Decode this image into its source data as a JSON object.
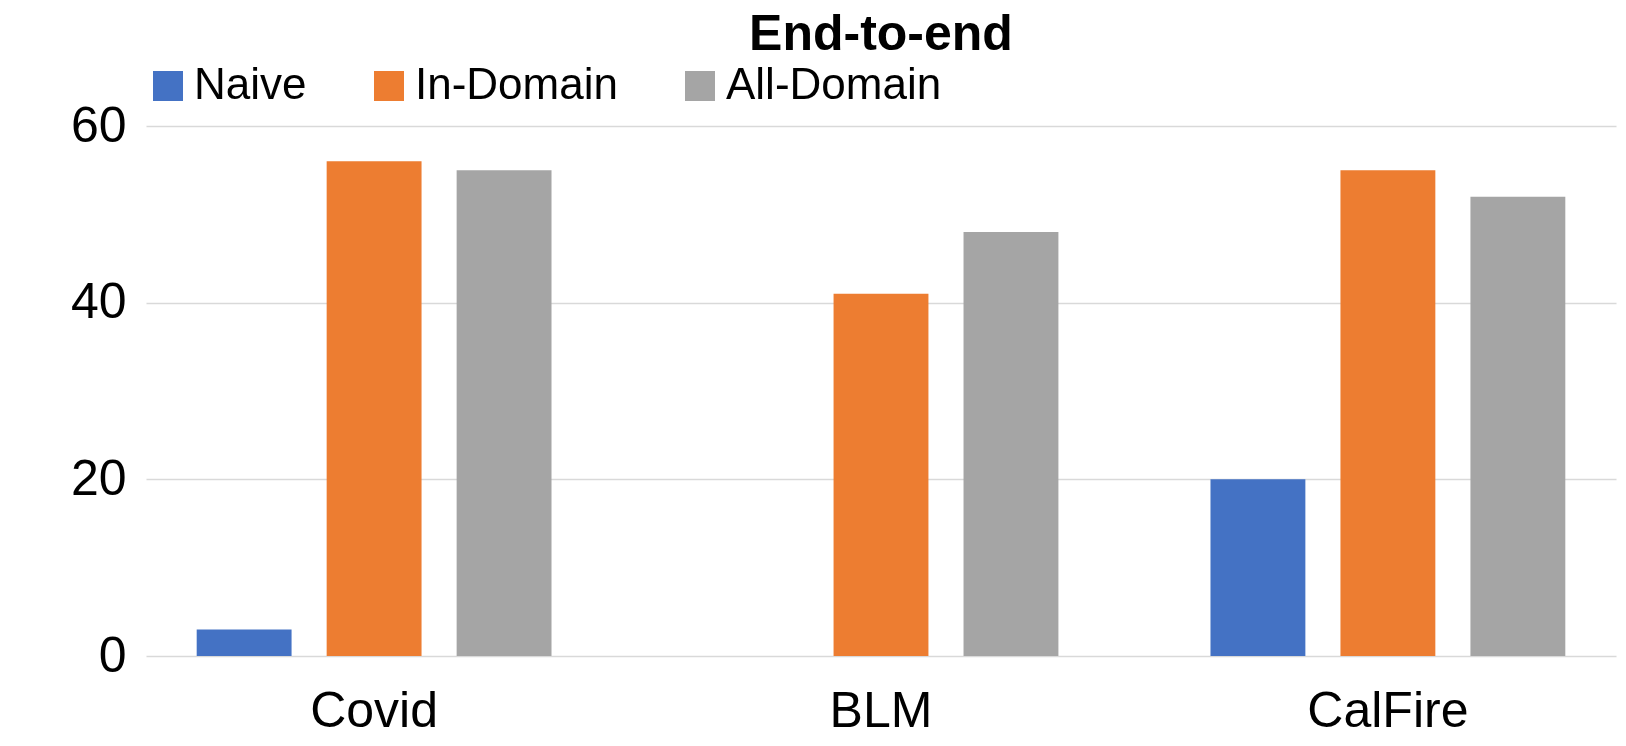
{
  "chart_data": {
    "type": "bar",
    "title": "End-to-end",
    "categories": [
      "Covid",
      "BLM",
      "CalFire"
    ],
    "series": [
      {
        "name": "Naive",
        "color": "#4472c4",
        "values": [
          3,
          0,
          20
        ]
      },
      {
        "name": "In-Domain",
        "color": "#ed7d31",
        "values": [
          56,
          41,
          55
        ]
      },
      {
        "name": "All-Domain",
        "color": "#a5a5a5",
        "values": [
          55,
          48,
          52
        ]
      }
    ],
    "ylim": [
      0,
      60
    ],
    "yticks": [
      0,
      20,
      40,
      60
    ],
    "grid": "y",
    "legend": "top"
  }
}
